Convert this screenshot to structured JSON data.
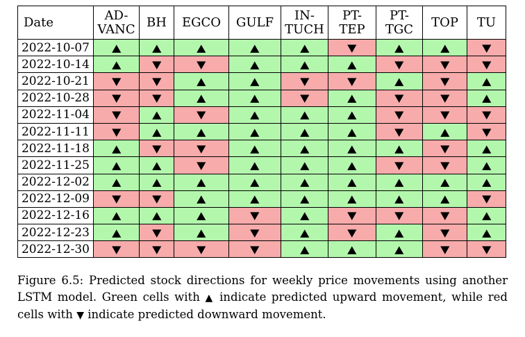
{
  "table": {
    "date_header": "Date",
    "columns": [
      {
        "line1": "AD-",
        "line2": "VANC"
      },
      {
        "line1": "BH",
        "line2": ""
      },
      {
        "line1": "EGCO",
        "line2": ""
      },
      {
        "line1": "GULF",
        "line2": ""
      },
      {
        "line1": "IN-",
        "line2": "TUCH"
      },
      {
        "line1": "PT-",
        "line2": "TEP"
      },
      {
        "line1": "PT-",
        "line2": "TGC"
      },
      {
        "line1": "TOP",
        "line2": ""
      },
      {
        "line1": "TU",
        "line2": ""
      }
    ],
    "up_symbol": "▲",
    "down_symbol": "▼",
    "up_color": "#b3f7ad",
    "down_color": "#f7abab",
    "rows": [
      {
        "date": "2022-10-07",
        "dirs": [
          "up",
          "up",
          "up",
          "up",
          "up",
          "down",
          "up",
          "up",
          "down"
        ]
      },
      {
        "date": "2022-10-14",
        "dirs": [
          "up",
          "down",
          "down",
          "up",
          "up",
          "up",
          "down",
          "down",
          "down"
        ]
      },
      {
        "date": "2022-10-21",
        "dirs": [
          "down",
          "down",
          "up",
          "up",
          "down",
          "down",
          "up",
          "down",
          "up"
        ]
      },
      {
        "date": "2022-10-28",
        "dirs": [
          "down",
          "down",
          "up",
          "up",
          "down",
          "up",
          "down",
          "down",
          "up"
        ]
      },
      {
        "date": "2022-11-04",
        "dirs": [
          "down",
          "up",
          "down",
          "up",
          "up",
          "up",
          "down",
          "down",
          "down"
        ]
      },
      {
        "date": "2022-11-11",
        "dirs": [
          "down",
          "up",
          "up",
          "up",
          "up",
          "up",
          "down",
          "up",
          "down"
        ]
      },
      {
        "date": "2022-11-18",
        "dirs": [
          "up",
          "down",
          "down",
          "up",
          "up",
          "up",
          "up",
          "down",
          "up"
        ]
      },
      {
        "date": "2022-11-25",
        "dirs": [
          "up",
          "up",
          "down",
          "up",
          "up",
          "up",
          "down",
          "down",
          "up"
        ]
      },
      {
        "date": "2022-12-02",
        "dirs": [
          "up",
          "up",
          "up",
          "up",
          "up",
          "up",
          "up",
          "up",
          "up"
        ]
      },
      {
        "date": "2022-12-09",
        "dirs": [
          "down",
          "down",
          "up",
          "up",
          "up",
          "up",
          "up",
          "up",
          "down"
        ]
      },
      {
        "date": "2022-12-16",
        "dirs": [
          "up",
          "up",
          "up",
          "down",
          "up",
          "down",
          "down",
          "down",
          "up"
        ]
      },
      {
        "date": "2022-12-23",
        "dirs": [
          "up",
          "down",
          "up",
          "down",
          "up",
          "down",
          "up",
          "down",
          "up"
        ]
      },
      {
        "date": "2022-12-30",
        "dirs": [
          "down",
          "down",
          "down",
          "down",
          "up",
          "up",
          "up",
          "down",
          "down"
        ]
      }
    ]
  },
  "caption": {
    "label": "Figure 6.5:",
    "part1": " Predicted stock directions for weekly price movements using another LSTM model. Green cells with ",
    "up_glyph": "▲",
    "part2": " indicate predicted upward movement, while red cells with ",
    "down_glyph": "▼",
    "part3": " indicate predicted downward movement."
  }
}
